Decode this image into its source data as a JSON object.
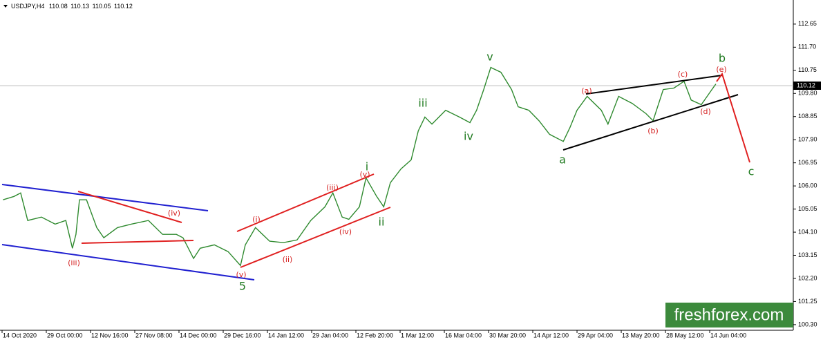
{
  "chart_data": {
    "type": "line",
    "symbol": "USDJPY,H4",
    "ohlc": [
      110.08,
      110.13,
      110.05,
      110.12
    ],
    "color": "#2f8a2f",
    "x": [
      0.02,
      0.27,
      0.42,
      0.58,
      0.89,
      1.2,
      1.44,
      1.59,
      1.67,
      1.75,
      1.91,
      2.14,
      2.3,
      2.61,
      2.92,
      3.31,
      3.63,
      3.94,
      4.09,
      4.33,
      4.48,
      4.8,
      5.11,
      5.39,
      5.5,
      5.73,
      6.05,
      6.36,
      6.67,
      6.98,
      7.3,
      7.48,
      7.69,
      7.84,
      8.08,
      8.23,
      8.47,
      8.63,
      8.78,
      9.02,
      9.25,
      9.41,
      9.56,
      9.72,
      10.03,
      10.34,
      10.58,
      10.73,
      10.89,
      11.05,
      11.28,
      11.52,
      11.67,
      11.91,
      12.14,
      12.38,
      12.69,
      12.84,
      13.0,
      13.23,
      13.55,
      13.7,
      13.94,
      14.25,
      14.56,
      14.72,
      14.95,
      15.19,
      15.42,
      15.58,
      15.81,
      16.05,
      16.14
    ],
    "values": [
      105.43,
      105.57,
      105.71,
      104.58,
      104.72,
      104.43,
      104.58,
      103.44,
      104.01,
      105.43,
      105.43,
      104.29,
      103.87,
      104.29,
      104.43,
      104.58,
      104.01,
      104.01,
      103.87,
      103.02,
      103.44,
      103.58,
      103.3,
      102.73,
      103.58,
      104.29,
      103.73,
      103.67,
      103.78,
      104.58,
      105.14,
      105.71,
      104.72,
      104.63,
      105.14,
      106.33,
      105.57,
      105.14,
      106.13,
      106.7,
      107.07,
      108.26,
      108.83,
      108.54,
      109.11,
      108.83,
      108.6,
      109.11,
      109.96,
      110.87,
      110.67,
      109.96,
      109.25,
      109.11,
      108.68,
      108.12,
      107.83,
      108.4,
      109.11,
      109.68,
      109.11,
      108.54,
      109.68,
      109.39,
      108.97,
      108.68,
      109.96,
      110.02,
      110.3,
      109.53,
      109.34,
      109.96,
      110.19
    ],
    "xlim": [
      0,
      17.89
    ],
    "ylim": [
      100.07,
      113.64
    ],
    "xticks": [
      {
        "value": 0,
        "label": "14 Oct 2020"
      },
      {
        "value": 1,
        "label": "29 Oct 00:00"
      },
      {
        "value": 2,
        "label": "12 Nov 16:00"
      },
      {
        "value": 3,
        "label": "27 Nov 08:00"
      },
      {
        "value": 4,
        "label": "14 Dec 00:00"
      },
      {
        "value": 5,
        "label": "29 Dec 16:00"
      },
      {
        "value": 6,
        "label": "14 Jan 12:00"
      },
      {
        "value": 7,
        "label": "29 Jan 04:00"
      },
      {
        "value": 8,
        "label": "12 Feb 20:00"
      },
      {
        "value": 9,
        "label": "1 Mar 12:00"
      },
      {
        "value": 10,
        "label": "16 Mar 04:00"
      },
      {
        "value": 11,
        "label": "30 Mar 20:00"
      },
      {
        "value": 12,
        "label": "14 Apr 12:00"
      },
      {
        "value": 13,
        "label": "29 Apr 04:00"
      },
      {
        "value": 14,
        "label": "13 May 20:00"
      },
      {
        "value": 15,
        "label": "28 May 12:00"
      },
      {
        "value": 16,
        "label": "14 Jun 04:00"
      }
    ],
    "yticks": [
      112.65,
      {
        "value": 111.7,
        "label": "111.70"
      },
      110.75,
      {
        "value": 109.8,
        "label": "109.80"
      },
      108.85,
      {
        "value": 107.9,
        "label": "107.90"
      },
      106.95,
      {
        "value": 106.0,
        "label": "106.00"
      },
      105.05,
      {
        "value": 104.1,
        "label": "104.10"
      },
      103.15,
      {
        "value": 102.2,
        "label": "102.20"
      },
      101.25,
      {
        "value": 100.3,
        "label": "100.30"
      }
    ],
    "annotations": [
      {
        "text": "(iii)",
        "color": "#d42020"
      },
      {
        "text": "(iv)",
        "color": "#d42020"
      },
      {
        "text": "5",
        "color": "#1f7a1f"
      },
      {
        "text": "(v)",
        "color": "#d42020"
      },
      {
        "text": "(i)",
        "color": "#d42020"
      },
      {
        "text": "(ii)",
        "color": "#d42020"
      },
      {
        "text": "(iii)",
        "color": "#d42020"
      },
      {
        "text": "(iv)",
        "color": "#d42020"
      },
      {
        "text": "(v)",
        "color": "#d42020"
      },
      {
        "text": "i",
        "color": "#1f7a1f"
      },
      {
        "text": "ii",
        "color": "#1f7a1f"
      },
      {
        "text": "iii",
        "color": "#1f7a1f"
      },
      {
        "text": "iv",
        "color": "#1f7a1f"
      },
      {
        "text": "v",
        "color": "#1f7a1f"
      },
      {
        "text": "a",
        "color": "#1f7a1f"
      },
      {
        "text": "(a)",
        "color": "#d42020"
      },
      {
        "text": "(b)",
        "color": "#d42020"
      },
      {
        "text": "(c)",
        "color": "#d42020"
      },
      {
        "text": "(d)",
        "color": "#d42020"
      },
      {
        "text": "(e)",
        "color": "#d42020"
      },
      {
        "text": "b",
        "color": "#1f7a1f"
      },
      {
        "text": "c",
        "color": "#1f7a1f"
      }
    ],
    "watermark": "freshforex.com"
  }
}
